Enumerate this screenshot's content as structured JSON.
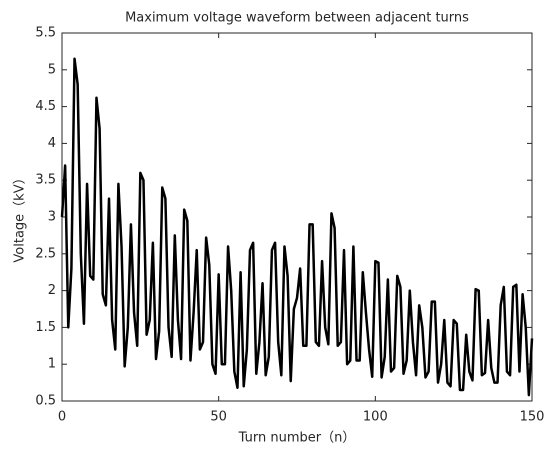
{
  "chart_data": {
    "type": "line",
    "title": "Maximum voltage waveform between adjacent turns",
    "xlabel": "Turn number（n）",
    "ylabel": "Voltage（kV）",
    "x": [
      0,
      1,
      2,
      3,
      4,
      5,
      6,
      7,
      8,
      9,
      10,
      11,
      12,
      13,
      14,
      15,
      16,
      17,
      18,
      19,
      20,
      21,
      22,
      23,
      24,
      25,
      26,
      27,
      28,
      29,
      30,
      31,
      32,
      33,
      34,
      35,
      36,
      37,
      38,
      39,
      40,
      41,
      42,
      43,
      44,
      45,
      46,
      47,
      48,
      49,
      50,
      51,
      52,
      53,
      54,
      55,
      56,
      57,
      58,
      59,
      60,
      61,
      62,
      63,
      64,
      65,
      66,
      67,
      68,
      69,
      70,
      71,
      72,
      73,
      74,
      75,
      76,
      77,
      78,
      79,
      80,
      81,
      82,
      83,
      84,
      85,
      86,
      87,
      88,
      89,
      90,
      91,
      92,
      93,
      94,
      95,
      96,
      97,
      98,
      99,
      100,
      101,
      102,
      103,
      104,
      105,
      106,
      107,
      108,
      109,
      110,
      111,
      112,
      113,
      114,
      115,
      116,
      117,
      118,
      119,
      120,
      121,
      122,
      123,
      124,
      125,
      126,
      127,
      128,
      129,
      130,
      131,
      132,
      133,
      134,
      135,
      136,
      137,
      138,
      139,
      140,
      141,
      142,
      143,
      144,
      145,
      146,
      147,
      148,
      149,
      150
    ],
    "series": [
      {
        "color": "#000000",
        "values": [
          3.0,
          3.7,
          1.5,
          2.3,
          5.15,
          4.8,
          2.5,
          1.55,
          3.45,
          2.2,
          2.15,
          4.62,
          4.2,
          1.95,
          1.8,
          3.25,
          1.6,
          1.2,
          3.45,
          2.6,
          0.97,
          1.5,
          2.9,
          1.7,
          1.25,
          3.6,
          3.5,
          1.4,
          1.6,
          2.65,
          1.07,
          1.45,
          3.4,
          3.25,
          1.5,
          1.1,
          2.75,
          1.6,
          1.07,
          3.1,
          2.95,
          1.05,
          1.7,
          2.55,
          1.2,
          1.3,
          2.72,
          2.35,
          1.0,
          0.87,
          2.22,
          1.0,
          1.0,
          2.6,
          2.0,
          0.9,
          0.68,
          2.25,
          0.7,
          1.2,
          2.55,
          2.65,
          0.87,
          1.3,
          2.1,
          0.85,
          1.1,
          2.55,
          2.65,
          1.3,
          0.85,
          2.6,
          2.2,
          0.77,
          1.75,
          1.9,
          2.3,
          1.25,
          1.25,
          2.9,
          2.9,
          1.3,
          1.25,
          2.4,
          1.5,
          1.27,
          3.05,
          2.85,
          1.25,
          1.3,
          2.55,
          1.0,
          1.05,
          2.6,
          1.05,
          1.05,
          2.25,
          1.7,
          1.2,
          0.83,
          2.4,
          2.38,
          0.82,
          1.1,
          2.15,
          0.9,
          0.95,
          2.2,
          2.05,
          0.87,
          1.05,
          2.0,
          1.3,
          0.85,
          1.8,
          1.5,
          0.82,
          0.9,
          1.85,
          1.85,
          0.75,
          1.0,
          1.6,
          0.75,
          0.7,
          1.6,
          1.55,
          0.65,
          0.65,
          1.4,
          0.9,
          0.78,
          2.02,
          2.0,
          0.85,
          0.88,
          1.6,
          0.95,
          0.75,
          0.75,
          1.8,
          2.05,
          0.9,
          0.85,
          2.05,
          2.08,
          0.9,
          1.95,
          1.5,
          0.58,
          1.35
        ]
      }
    ],
    "xlim": [
      0,
      150
    ],
    "xticks": [
      0,
      50,
      100,
      150
    ],
    "ylim": [
      0.5,
      5.5
    ],
    "yticks": [
      0.5,
      1,
      1.5,
      2,
      2.5,
      3,
      3.5,
      4,
      4.5,
      5,
      5.5
    ]
  }
}
